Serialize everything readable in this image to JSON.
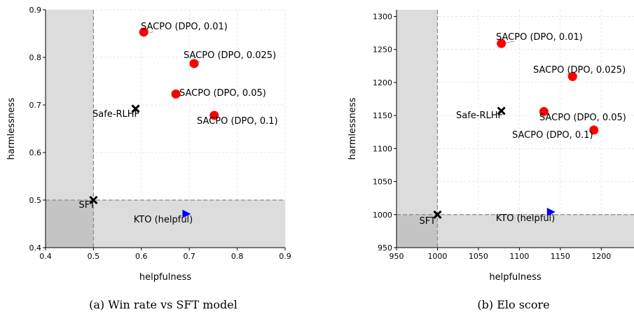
{
  "chart_data": [
    {
      "type": "scatter",
      "caption": "(a) Win rate vs SFT model",
      "xlabel": "helpfulness",
      "ylabel": "harmlessness",
      "xlim": [
        0.4,
        0.9
      ],
      "ylim": [
        0.4,
        0.9
      ],
      "xticks": [
        "0.4",
        "0.5",
        "0.6",
        "0.7",
        "0.8",
        "0.9"
      ],
      "yticks": [
        "0.4",
        "0.5",
        "0.6",
        "0.7",
        "0.8",
        "0.9"
      ],
      "grid": true,
      "reference": {
        "x": 0.5,
        "y": 0.5
      },
      "points": [
        {
          "label": "SACPO (DPO, 0.01)",
          "x": 0.605,
          "y": 0.853,
          "marker": "circle",
          "color": "#ff0000"
        },
        {
          "label": "SACPO (DPO, 0.025)",
          "x": 0.71,
          "y": 0.787,
          "marker": "circle",
          "color": "#ff0000"
        },
        {
          "label": "SACPO (DPO, 0.05)",
          "x": 0.672,
          "y": 0.723,
          "marker": "circle",
          "color": "#ff0000"
        },
        {
          "label": "SACPO (DPO, 0.1)",
          "x": 0.752,
          "y": 0.678,
          "marker": "circle",
          "color": "#ff0000"
        },
        {
          "label": "Safe-RLHF",
          "x": 0.588,
          "y": 0.692,
          "marker": "x",
          "color": "#000000"
        },
        {
          "label": "SFT",
          "x": 0.5,
          "y": 0.5,
          "marker": "x",
          "color": "#000000"
        },
        {
          "label": "KTO (helpful)",
          "x": 0.693,
          "y": 0.471,
          "marker": "triangle",
          "color": "#0000ff"
        }
      ]
    },
    {
      "type": "scatter",
      "caption": "(b) Elo score",
      "xlabel": "helpfulness",
      "ylabel": "harmlessness",
      "xlim": [
        950,
        1240
      ],
      "ylim": [
        950,
        1310
      ],
      "xticks": [
        "950",
        "1000",
        "1050",
        "1100",
        "1150",
        "1200"
      ],
      "yticks": [
        "950",
        "1000",
        "1050",
        "1100",
        "1150",
        "1200",
        "1250",
        "1300"
      ],
      "grid": true,
      "reference": {
        "x": 1000,
        "y": 1000
      },
      "points": [
        {
          "label": "SACPO (DPO, 0.01)",
          "x": 1078,
          "y": 1259,
          "marker": "circle",
          "color": "#ff0000"
        },
        {
          "label": "SACPO (DPO, 0.025)",
          "x": 1165,
          "y": 1209,
          "marker": "circle",
          "color": "#ff0000"
        },
        {
          "label": "SACPO (DPO, 0.05)",
          "x": 1130,
          "y": 1156,
          "marker": "circle",
          "color": "#ff0000"
        },
        {
          "label": "SACPO (DPO, 0.1)",
          "x": 1191,
          "y": 1128,
          "marker": "circle",
          "color": "#ff0000"
        },
        {
          "label": "Safe-RLHF",
          "x": 1078,
          "y": 1157,
          "marker": "x",
          "color": "#000000"
        },
        {
          "label": "SFT",
          "x": 1000,
          "y": 1000,
          "marker": "x",
          "color": "#000000"
        },
        {
          "label": "KTO (helpful)",
          "x": 1138,
          "y": 1004,
          "marker": "triangle",
          "color": "#0000ff"
        }
      ]
    }
  ]
}
